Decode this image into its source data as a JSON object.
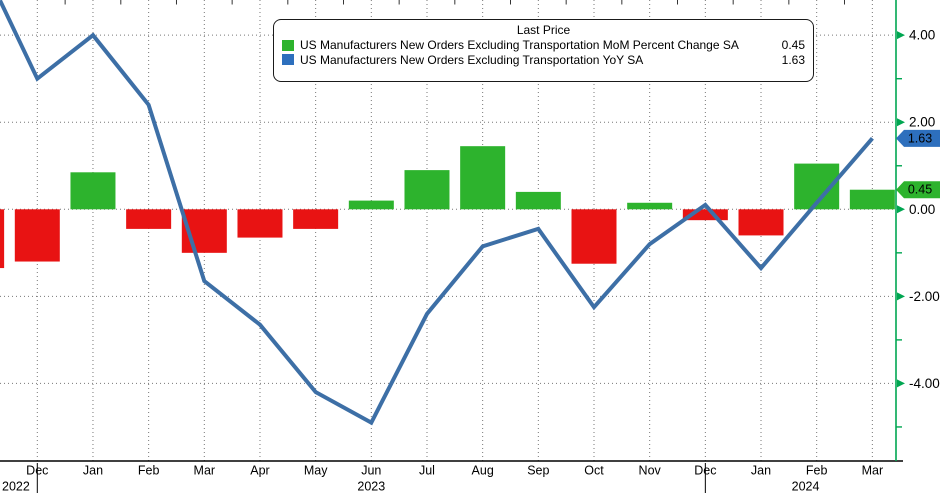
{
  "legend": {
    "title": "Last Price",
    "rows": [
      {
        "label": "US Manufacturers New Orders Excluding Transportation MoM Percent Change SA",
        "value": "0.45",
        "color": "#2db32d"
      },
      {
        "label": "US Manufacturers New Orders Excluding Transportation YoY SA",
        "value": "1.63",
        "color": "#2d6fbd"
      }
    ]
  },
  "chart_data": {
    "type": "combo",
    "grid": "dotted",
    "legend_position": "top-center",
    "x": {
      "categories": [
        "Dec",
        "Jan",
        "Feb",
        "Mar",
        "Apr",
        "May",
        "Jun",
        "Jul",
        "Aug",
        "Sep",
        "Oct",
        "Nov",
        "Dec",
        "Jan",
        "Feb",
        "Mar"
      ],
      "years": [
        {
          "label": "2022",
          "at_month": 0
        },
        {
          "label": "2023",
          "at_month": 6
        },
        {
          "label": "2024",
          "at_month": 13.8
        }
      ],
      "year_divider_months": [
        0,
        12
      ]
    },
    "series": [
      {
        "name": "US Manufacturers New Orders Excluding Transportation MoM Percent Change SA",
        "type": "bar",
        "values": [
          -1.2,
          0.85,
          -0.45,
          -1.0,
          -0.65,
          -0.45,
          0.2,
          0.9,
          1.45,
          0.4,
          -1.25,
          0.15,
          -0.25,
          -0.6,
          1.05,
          0.45
        ],
        "prev_partial_value": -1.35,
        "last_value": 0.45,
        "color_positive": "#2db32d",
        "color_negative": "#e81313"
      },
      {
        "name": "US Manufacturers New Orders Excluding Transportation YoY SA",
        "type": "line",
        "values": [
          3.0,
          4.0,
          2.4,
          -1.65,
          -2.65,
          -4.2,
          -4.9,
          -2.4,
          -0.85,
          -0.45,
          -2.25,
          -0.8,
          0.1,
          -1.35,
          0.15,
          1.63
        ],
        "left_edge_entry_value": 4.8,
        "last_value": 1.63,
        "color": "#3d6fa6"
      }
    ],
    "y_axis": {
      "side": "right",
      "major_ticks": [
        4,
        2,
        0,
        -2,
        -4
      ],
      "major_tick_labels": [
        "4.00",
        "2.00",
        "0.00",
        "-2.00",
        "-4.00"
      ],
      "minor_ticks": [
        3,
        1,
        -1,
        -3,
        -5
      ],
      "axis_color": "#00a651",
      "label_color": "#000000",
      "grid_color": "#777777"
    },
    "badges": [
      {
        "value": "1.63",
        "y_value": 1.63,
        "bg": "#2d6fbd",
        "fg": "#ffffff",
        "series": "yoy"
      },
      {
        "value": "0.45",
        "y_value": 0.45,
        "bg": "#2db32d",
        "fg": "#000000",
        "series": "mom"
      }
    ]
  }
}
